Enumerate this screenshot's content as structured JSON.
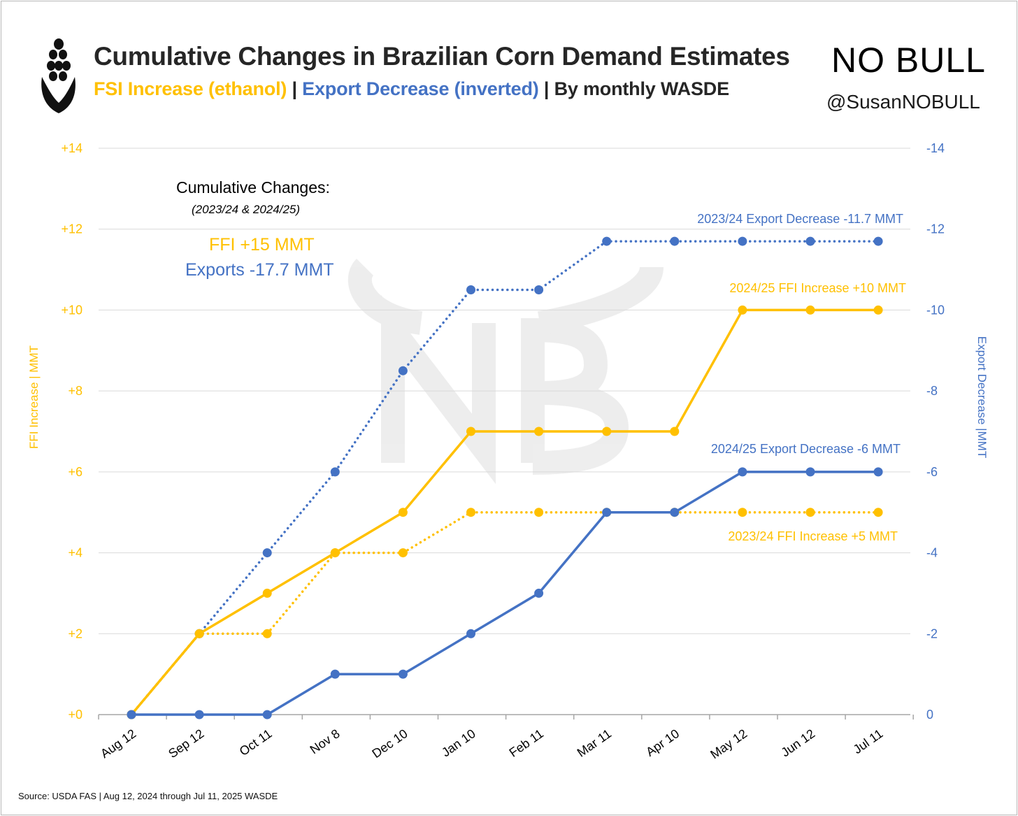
{
  "header": {
    "title": "Cumulative Changes in Brazilian Corn Demand Estimates",
    "subtitle_fsi": "FSI Increase (ethanol)",
    "subtitle_sep1": " | ",
    "subtitle_export": "Export Decrease (inverted)",
    "subtitle_sep2": " | ",
    "subtitle_rest": "By monthly WASDE",
    "brand": "NO BULL",
    "handle": "@SusanNOBULL"
  },
  "annotation": {
    "title": "Cumulative Changes:",
    "subtitle": "(2023/24 & 2024/25)",
    "ffi": "FFI +15 MMT",
    "exports": "Exports -17.7 MMT"
  },
  "source": "Source: USDA FAS | Aug 12, 2024 through Jul 11, 2025 WASDE",
  "colors": {
    "ffi": "#FFC000",
    "export": "#4472C4",
    "grid": "#d9d9d9",
    "text": "#262626"
  },
  "chart_data": {
    "type": "line",
    "title": "Cumulative Changes in Brazilian Corn Demand Estimates",
    "categories": [
      "Aug 12",
      "Sep 12",
      "Oct 11",
      "Nov 8",
      "Dec 10",
      "Jan 10",
      "Feb 11",
      "Mar 11",
      "Apr 10",
      "May 12",
      "Jun 12",
      "Jul 11"
    ],
    "ylabel_left": "FFI Increase | MMT",
    "ylabel_right": "Export Decrease |MMT",
    "ylim_left": [
      0,
      14
    ],
    "ylim_right": [
      0,
      -14
    ],
    "left_ticks": [
      "+0",
      "+2",
      "+4",
      "+6",
      "+8",
      "+10",
      "+12",
      "+14"
    ],
    "right_ticks": [
      "0",
      "-2",
      "-4",
      "-6",
      "-8",
      "-10",
      "-12",
      "-14"
    ],
    "grid": true,
    "series": [
      {
        "name": "2024/25 FFI Increase",
        "axis": "left",
        "style": "solid",
        "color": "#FFC000",
        "values": [
          0,
          2,
          3,
          4,
          5,
          7,
          7,
          7,
          7,
          10,
          10,
          10
        ],
        "label": "2024/25 FFI Increase +10 MMT"
      },
      {
        "name": "2023/24 FFI Increase",
        "axis": "left",
        "style": "dotted",
        "color": "#FFC000",
        "values": [
          0,
          2,
          2,
          4,
          4,
          5,
          5,
          5,
          5,
          5,
          5,
          5
        ],
        "label": "2023/24 FFI Increase +5 MMT"
      },
      {
        "name": "2024/25 Export Decrease",
        "axis": "right",
        "style": "solid",
        "color": "#4472C4",
        "values": [
          0,
          0,
          0,
          -1,
          -1,
          -2,
          -3,
          -5,
          -5,
          -6,
          -6,
          -6
        ],
        "label": "2024/25 Export Decrease -6 MMT"
      },
      {
        "name": "2023/24 Export Decrease",
        "axis": "right",
        "style": "dotted",
        "color": "#4472C4",
        "values": [
          0,
          -2,
          -4,
          -6,
          -8.5,
          -10.5,
          -10.5,
          -11.7,
          -11.7,
          -11.7,
          -11.7,
          -11.7
        ],
        "label": "2023/24 Export Decrease -11.7 MMT"
      }
    ]
  }
}
